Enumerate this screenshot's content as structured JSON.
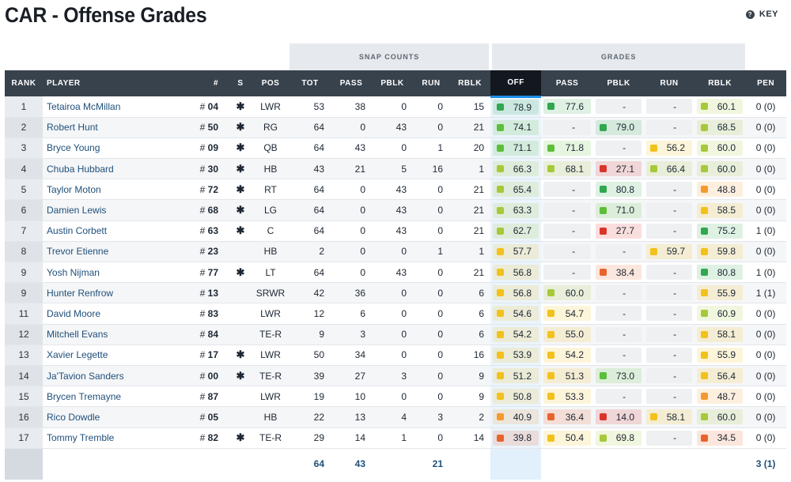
{
  "title": "CAR - Offense Grades",
  "key_label": "KEY",
  "key_icon": "?",
  "groups": {
    "snap": "SNAP COUNTS",
    "grades": "GRADES"
  },
  "columns": {
    "rank": "RANK",
    "player": "PLAYER",
    "num": "#",
    "s": "S",
    "pos": "POS",
    "tot": "TOT",
    "pass": "PASS",
    "pblk": "PBLK",
    "run": "RUN",
    "rblk": "RBLK",
    "g_off": "OFF",
    "g_pass": "PASS",
    "g_pblk": "PBLK",
    "g_run": "RUN",
    "g_rblk": "RBLK",
    "pen": "PEN"
  },
  "grade_colors": {
    "dark_green": "#2fa84f",
    "green": "#5cbf3a",
    "yellow_green": "#a6c93a",
    "yellow": "#f2c11b",
    "orange": "#f39a2f",
    "dark_orange": "#e8632b",
    "red": "#d9342b",
    "dark_red": "#c62a2f"
  },
  "rows": [
    {
      "rank": "1",
      "player": "Tetairoa McMillan",
      "num": "04",
      "star": "✱",
      "pos": "LWR",
      "tot": "53",
      "pass": "38",
      "pblk": "0",
      "run": "0",
      "rblk": "15",
      "off": "78.9",
      "g_pass": "77.6",
      "g_pblk": "-",
      "g_run": "-",
      "g_rblk": "60.1",
      "pen": "0 (0)"
    },
    {
      "rank": "2",
      "player": "Robert Hunt",
      "num": "50",
      "star": "✱",
      "pos": "RG",
      "tot": "64",
      "pass": "0",
      "pblk": "43",
      "run": "0",
      "rblk": "21",
      "off": "74.1",
      "g_pass": "-",
      "g_pblk": "79.0",
      "g_run": "-",
      "g_rblk": "68.5",
      "pen": "0 (0)"
    },
    {
      "rank": "3",
      "player": "Bryce Young",
      "num": "09",
      "star": "✱",
      "pos": "QB",
      "tot": "64",
      "pass": "43",
      "pblk": "0",
      "run": "1",
      "rblk": "20",
      "off": "71.1",
      "g_pass": "71.8",
      "g_pblk": "-",
      "g_run": "56.2",
      "g_rblk": "60.0",
      "pen": "0 (0)"
    },
    {
      "rank": "4",
      "player": "Chuba Hubbard",
      "num": "30",
      "star": "✱",
      "pos": "HB",
      "tot": "43",
      "pass": "21",
      "pblk": "5",
      "run": "16",
      "rblk": "1",
      "off": "66.3",
      "g_pass": "68.1",
      "g_pblk": "27.1",
      "g_run": "66.4",
      "g_rblk": "60.0",
      "pen": "0 (0)"
    },
    {
      "rank": "5",
      "player": "Taylor Moton",
      "num": "72",
      "star": "✱",
      "pos": "RT",
      "tot": "64",
      "pass": "0",
      "pblk": "43",
      "run": "0",
      "rblk": "21",
      "off": "65.4",
      "g_pass": "-",
      "g_pblk": "80.8",
      "g_run": "-",
      "g_rblk": "48.8",
      "pen": "0 (0)"
    },
    {
      "rank": "6",
      "player": "Damien Lewis",
      "num": "68",
      "star": "✱",
      "pos": "LG",
      "tot": "64",
      "pass": "0",
      "pblk": "43",
      "run": "0",
      "rblk": "21",
      "off": "63.3",
      "g_pass": "-",
      "g_pblk": "71.0",
      "g_run": "-",
      "g_rblk": "58.5",
      "pen": "0 (0)"
    },
    {
      "rank": "7",
      "player": "Austin Corbett",
      "num": "63",
      "star": "✱",
      "pos": "C",
      "tot": "64",
      "pass": "0",
      "pblk": "43",
      "run": "0",
      "rblk": "21",
      "off": "62.7",
      "g_pass": "-",
      "g_pblk": "27.7",
      "g_run": "-",
      "g_rblk": "75.2",
      "pen": "1 (0)"
    },
    {
      "rank": "8",
      "player": "Trevor Etienne",
      "num": "23",
      "star": "",
      "pos": "HB",
      "tot": "2",
      "pass": "0",
      "pblk": "0",
      "run": "1",
      "rblk": "1",
      "off": "57.7",
      "g_pass": "-",
      "g_pblk": "-",
      "g_run": "59.7",
      "g_rblk": "59.8",
      "pen": "0 (0)"
    },
    {
      "rank": "9",
      "player": "Yosh Nijman",
      "num": "77",
      "star": "✱",
      "pos": "LT",
      "tot": "64",
      "pass": "0",
      "pblk": "43",
      "run": "0",
      "rblk": "21",
      "off": "56.8",
      "g_pass": "-",
      "g_pblk": "38.4",
      "g_run": "-",
      "g_rblk": "80.8",
      "pen": "1 (0)"
    },
    {
      "rank": "9",
      "player": "Hunter Renfrow",
      "num": "13",
      "star": "",
      "pos": "SRWR",
      "tot": "42",
      "pass": "36",
      "pblk": "0",
      "run": "0",
      "rblk": "6",
      "off": "56.8",
      "g_pass": "60.0",
      "g_pblk": "-",
      "g_run": "-",
      "g_rblk": "55.9",
      "pen": "1 (1)"
    },
    {
      "rank": "11",
      "player": "David Moore",
      "num": "83",
      "star": "",
      "pos": "LWR",
      "tot": "12",
      "pass": "6",
      "pblk": "0",
      "run": "0",
      "rblk": "6",
      "off": "54.6",
      "g_pass": "54.7",
      "g_pblk": "-",
      "g_run": "-",
      "g_rblk": "60.9",
      "pen": "0 (0)"
    },
    {
      "rank": "12",
      "player": "Mitchell Evans",
      "num": "84",
      "star": "",
      "pos": "TE-R",
      "tot": "9",
      "pass": "3",
      "pblk": "0",
      "run": "0",
      "rblk": "6",
      "off": "54.2",
      "g_pass": "55.0",
      "g_pblk": "-",
      "g_run": "-",
      "g_rblk": "58.1",
      "pen": "0 (0)"
    },
    {
      "rank": "13",
      "player": "Xavier Legette",
      "num": "17",
      "star": "✱",
      "pos": "LWR",
      "tot": "50",
      "pass": "34",
      "pblk": "0",
      "run": "0",
      "rblk": "16",
      "off": "53.9",
      "g_pass": "54.2",
      "g_pblk": "-",
      "g_run": "-",
      "g_rblk": "55.9",
      "pen": "0 (0)"
    },
    {
      "rank": "14",
      "player": "Ja'Tavion Sanders",
      "num": "00",
      "star": "✱",
      "pos": "TE-R",
      "tot": "39",
      "pass": "27",
      "pblk": "3",
      "run": "0",
      "rblk": "9",
      "off": "51.2",
      "g_pass": "51.3",
      "g_pblk": "73.0",
      "g_run": "-",
      "g_rblk": "56.4",
      "pen": "0 (0)"
    },
    {
      "rank": "15",
      "player": "Brycen Tremayne",
      "num": "87",
      "star": "",
      "pos": "LWR",
      "tot": "19",
      "pass": "10",
      "pblk": "0",
      "run": "0",
      "rblk": "9",
      "off": "50.8",
      "g_pass": "53.3",
      "g_pblk": "-",
      "g_run": "-",
      "g_rblk": "48.7",
      "pen": "0 (0)"
    },
    {
      "rank": "16",
      "player": "Rico Dowdle",
      "num": "05",
      "star": "",
      "pos": "HB",
      "tot": "22",
      "pass": "13",
      "pblk": "4",
      "run": "3",
      "rblk": "2",
      "off": "40.9",
      "g_pass": "36.4",
      "g_pblk": "14.0",
      "g_run": "58.1",
      "g_rblk": "60.0",
      "pen": "0 (0)"
    },
    {
      "rank": "17",
      "player": "Tommy Tremble",
      "num": "82",
      "star": "✱",
      "pos": "TE-R",
      "tot": "29",
      "pass": "14",
      "pblk": "1",
      "run": "0",
      "rblk": "14",
      "off": "39.8",
      "g_pass": "50.4",
      "g_pblk": "69.8",
      "g_run": "-",
      "g_rblk": "34.5",
      "pen": "0 (0)"
    }
  ],
  "totals": {
    "tot": "64",
    "pass": "43",
    "run": "21",
    "pen": "3 (1)"
  }
}
